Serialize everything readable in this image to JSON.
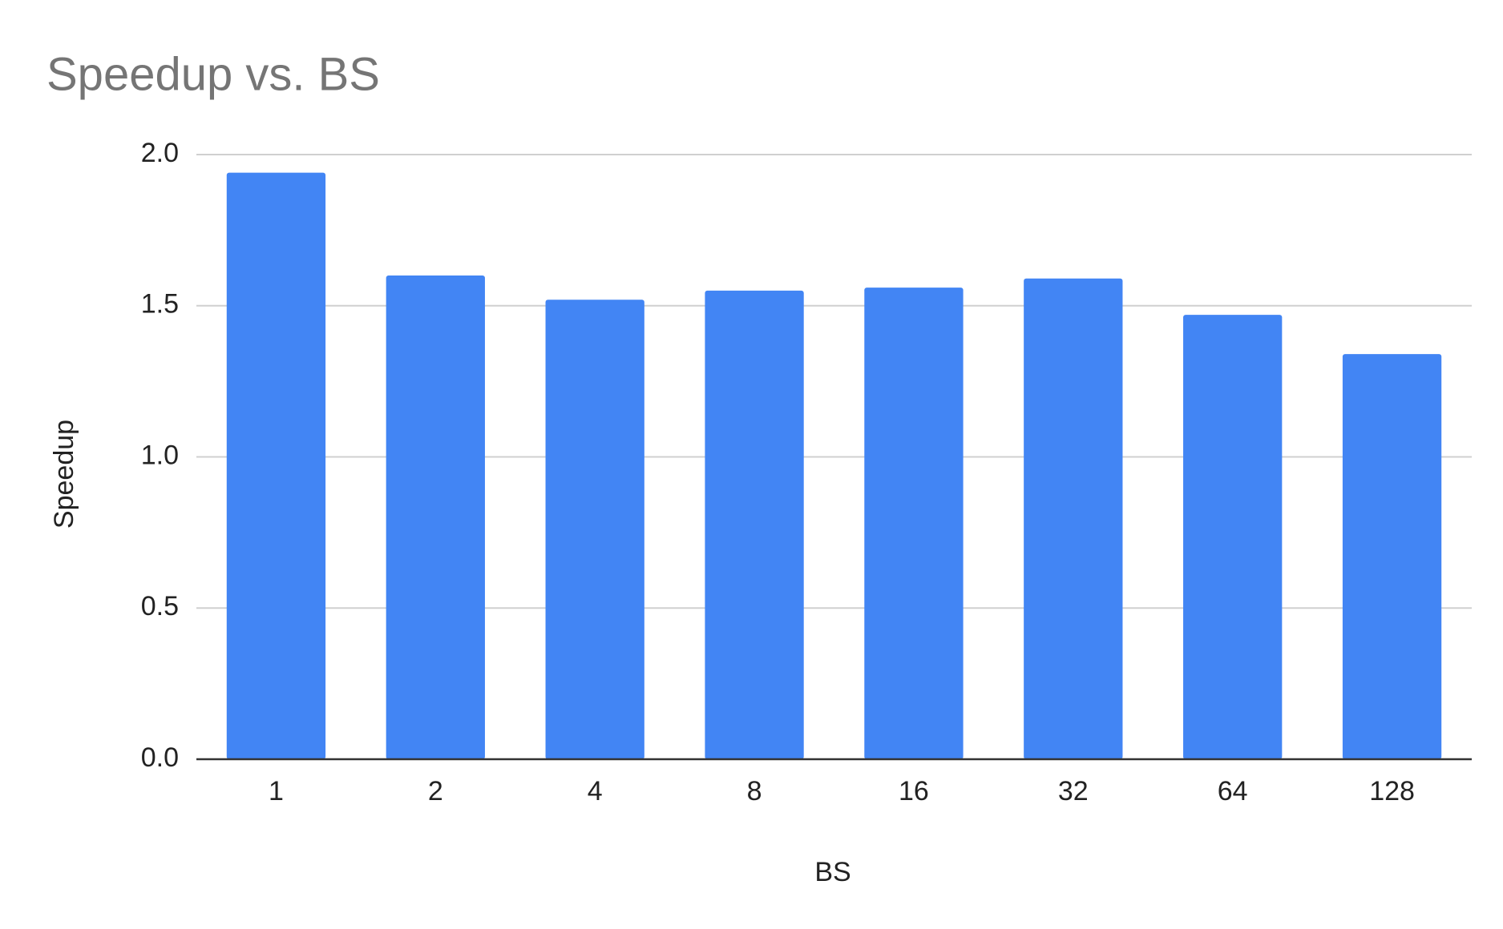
{
  "chart_data": {
    "type": "bar",
    "title": "Speedup vs. BS",
    "x_label": "BS",
    "y_label": "Speedup",
    "categories": [
      "1",
      "2",
      "4",
      "8",
      "16",
      "32",
      "64",
      "128"
    ],
    "values": [
      1.94,
      1.6,
      1.52,
      1.55,
      1.56,
      1.59,
      1.47,
      1.34
    ],
    "color": "#4285f4",
    "ylim": [
      0,
      2
    ],
    "yticks": [
      {
        "value": 0,
        "label": "0.0"
      },
      {
        "value": 0.5,
        "label": "0.5"
      },
      {
        "value": 1,
        "label": "1.0"
      },
      {
        "value": 1.5,
        "label": "1.5"
      },
      {
        "value": 2,
        "label": "2.0"
      }
    ],
    "grid": true
  }
}
